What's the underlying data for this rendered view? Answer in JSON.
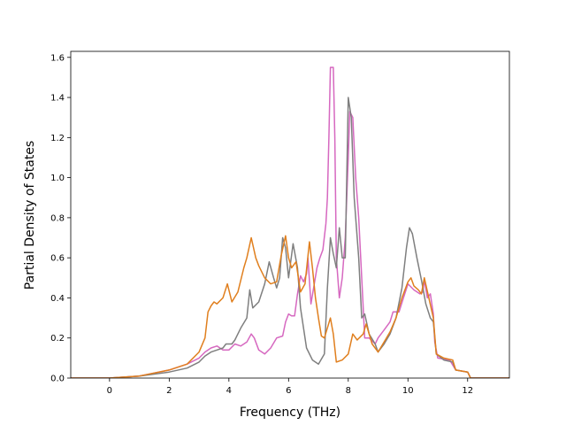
{
  "chart_data": {
    "type": "line",
    "title": "",
    "xlabel": "Frequency (THz)",
    "ylabel": "Partial Density of States",
    "xlim": [
      -1.3,
      13.4
    ],
    "ylim": [
      0,
      1.63
    ],
    "xticks": [
      0,
      2,
      4,
      6,
      8,
      10,
      12
    ],
    "yticks": [
      0.0,
      0.2,
      0.4,
      0.6,
      0.8,
      1.0,
      1.2,
      1.4,
      1.6
    ],
    "xtick_labels": [
      "0",
      "2",
      "4",
      "6",
      "8",
      "10",
      "12"
    ],
    "ytick_labels": [
      "0.0",
      "0.2",
      "0.4",
      "0.6",
      "0.8",
      "1.0",
      "1.2",
      "1.4",
      "1.6"
    ],
    "grid": false,
    "legend": "none",
    "series": [
      {
        "color": "#d668c0",
        "points": [
          [
            -1.3,
            0
          ],
          [
            0,
            0.0
          ],
          [
            1.0,
            0.01
          ],
          [
            2.0,
            0.04
          ],
          [
            2.6,
            0.07
          ],
          [
            3.0,
            0.1
          ],
          [
            3.2,
            0.13
          ],
          [
            3.4,
            0.15
          ],
          [
            3.6,
            0.16
          ],
          [
            3.8,
            0.14
          ],
          [
            4.0,
            0.14
          ],
          [
            4.2,
            0.17
          ],
          [
            4.4,
            0.16
          ],
          [
            4.6,
            0.18
          ],
          [
            4.75,
            0.22
          ],
          [
            4.85,
            0.2
          ],
          [
            5.0,
            0.14
          ],
          [
            5.2,
            0.12
          ],
          [
            5.4,
            0.15
          ],
          [
            5.6,
            0.2
          ],
          [
            5.8,
            0.21
          ],
          [
            5.9,
            0.28
          ],
          [
            6.0,
            0.32
          ],
          [
            6.1,
            0.31
          ],
          [
            6.2,
            0.31
          ],
          [
            6.3,
            0.42
          ],
          [
            6.4,
            0.51
          ],
          [
            6.5,
            0.48
          ],
          [
            6.6,
            0.52
          ],
          [
            6.65,
            0.6
          ],
          [
            6.75,
            0.37
          ],
          [
            6.85,
            0.46
          ],
          [
            6.95,
            0.55
          ],
          [
            7.05,
            0.6
          ],
          [
            7.15,
            0.64
          ],
          [
            7.25,
            0.77
          ],
          [
            7.3,
            0.9
          ],
          [
            7.35,
            1.2
          ],
          [
            7.4,
            1.55
          ],
          [
            7.5,
            1.55
          ],
          [
            7.55,
            1.2
          ],
          [
            7.6,
            0.6
          ],
          [
            7.7,
            0.4
          ],
          [
            7.8,
            0.5
          ],
          [
            7.9,
            0.7
          ],
          [
            8.0,
            1.1
          ],
          [
            8.05,
            1.33
          ],
          [
            8.15,
            1.3
          ],
          [
            8.25,
            1.0
          ],
          [
            8.35,
            0.8
          ],
          [
            8.45,
            0.5
          ],
          [
            8.55,
            0.2
          ],
          [
            8.7,
            0.2
          ],
          [
            8.9,
            0.17
          ],
          [
            9.0,
            0.2
          ],
          [
            9.2,
            0.24
          ],
          [
            9.4,
            0.28
          ],
          [
            9.5,
            0.33
          ],
          [
            9.7,
            0.33
          ],
          [
            9.85,
            0.4
          ],
          [
            10.0,
            0.47
          ],
          [
            10.2,
            0.44
          ],
          [
            10.4,
            0.42
          ],
          [
            10.5,
            0.43
          ],
          [
            10.55,
            0.49
          ],
          [
            10.65,
            0.4
          ],
          [
            10.75,
            0.42
          ],
          [
            10.85,
            0.32
          ],
          [
            10.9,
            0.18
          ],
          [
            11.0,
            0.1
          ],
          [
            11.4,
            0.09
          ],
          [
            11.6,
            0.04
          ],
          [
            12.0,
            0.03
          ],
          [
            12.1,
            0.0
          ],
          [
            13.4,
            0
          ]
        ]
      },
      {
        "color": "#7f7f7f",
        "points": [
          [
            -1.3,
            0
          ],
          [
            0,
            0.0
          ],
          [
            1.0,
            0.01
          ],
          [
            2.0,
            0.03
          ],
          [
            2.6,
            0.05
          ],
          [
            3.0,
            0.08
          ],
          [
            3.2,
            0.11
          ],
          [
            3.4,
            0.13
          ],
          [
            3.6,
            0.14
          ],
          [
            3.8,
            0.15
          ],
          [
            3.9,
            0.17
          ],
          [
            4.1,
            0.17
          ],
          [
            4.2,
            0.19
          ],
          [
            4.4,
            0.25
          ],
          [
            4.6,
            0.3
          ],
          [
            4.7,
            0.44
          ],
          [
            4.8,
            0.35
          ],
          [
            5.0,
            0.38
          ],
          [
            5.2,
            0.47
          ],
          [
            5.35,
            0.58
          ],
          [
            5.5,
            0.5
          ],
          [
            5.6,
            0.45
          ],
          [
            5.7,
            0.5
          ],
          [
            5.8,
            0.7
          ],
          [
            5.9,
            0.65
          ],
          [
            6.0,
            0.5
          ],
          [
            6.15,
            0.67
          ],
          [
            6.3,
            0.55
          ],
          [
            6.4,
            0.35
          ],
          [
            6.5,
            0.25
          ],
          [
            6.6,
            0.15
          ],
          [
            6.8,
            0.09
          ],
          [
            7.0,
            0.07
          ],
          [
            7.2,
            0.12
          ],
          [
            7.3,
            0.45
          ],
          [
            7.4,
            0.7
          ],
          [
            7.5,
            0.62
          ],
          [
            7.6,
            0.55
          ],
          [
            7.7,
            0.75
          ],
          [
            7.8,
            0.6
          ],
          [
            7.9,
            0.6
          ],
          [
            8.0,
            1.4
          ],
          [
            8.1,
            1.3
          ],
          [
            8.2,
            0.9
          ],
          [
            8.35,
            0.6
          ],
          [
            8.45,
            0.3
          ],
          [
            8.55,
            0.32
          ],
          [
            8.7,
            0.22
          ],
          [
            8.9,
            0.17
          ],
          [
            9.0,
            0.13
          ],
          [
            9.2,
            0.17
          ],
          [
            9.4,
            0.22
          ],
          [
            9.6,
            0.3
          ],
          [
            9.8,
            0.45
          ],
          [
            9.95,
            0.65
          ],
          [
            10.05,
            0.75
          ],
          [
            10.15,
            0.72
          ],
          [
            10.3,
            0.6
          ],
          [
            10.45,
            0.49
          ],
          [
            10.6,
            0.37
          ],
          [
            10.75,
            0.3
          ],
          [
            10.85,
            0.28
          ],
          [
            10.95,
            0.12
          ],
          [
            11.2,
            0.09
          ],
          [
            11.5,
            0.08
          ],
          [
            11.6,
            0.04
          ],
          [
            12.0,
            0.03
          ],
          [
            12.1,
            0.0
          ],
          [
            13.4,
            0
          ]
        ]
      },
      {
        "color": "#e07f1e",
        "points": [
          [
            -1.3,
            0
          ],
          [
            0,
            0.0
          ],
          [
            1.0,
            0.01
          ],
          [
            2.0,
            0.04
          ],
          [
            2.6,
            0.07
          ],
          [
            3.0,
            0.13
          ],
          [
            3.2,
            0.2
          ],
          [
            3.3,
            0.33
          ],
          [
            3.4,
            0.36
          ],
          [
            3.5,
            0.38
          ],
          [
            3.6,
            0.37
          ],
          [
            3.8,
            0.4
          ],
          [
            3.95,
            0.47
          ],
          [
            4.1,
            0.38
          ],
          [
            4.3,
            0.43
          ],
          [
            4.5,
            0.55
          ],
          [
            4.6,
            0.6
          ],
          [
            4.75,
            0.7
          ],
          [
            4.9,
            0.6
          ],
          [
            5.0,
            0.56
          ],
          [
            5.2,
            0.5
          ],
          [
            5.4,
            0.47
          ],
          [
            5.6,
            0.48
          ],
          [
            5.75,
            0.61
          ],
          [
            5.9,
            0.71
          ],
          [
            6.0,
            0.6
          ],
          [
            6.1,
            0.55
          ],
          [
            6.25,
            0.58
          ],
          [
            6.4,
            0.43
          ],
          [
            6.55,
            0.47
          ],
          [
            6.7,
            0.68
          ],
          [
            6.8,
            0.55
          ],
          [
            6.9,
            0.4
          ],
          [
            7.0,
            0.3
          ],
          [
            7.1,
            0.21
          ],
          [
            7.2,
            0.2
          ],
          [
            7.4,
            0.3
          ],
          [
            7.5,
            0.22
          ],
          [
            7.6,
            0.08
          ],
          [
            7.8,
            0.09
          ],
          [
            8.0,
            0.12
          ],
          [
            8.15,
            0.22
          ],
          [
            8.3,
            0.19
          ],
          [
            8.5,
            0.22
          ],
          [
            8.6,
            0.27
          ],
          [
            8.8,
            0.17
          ],
          [
            9.0,
            0.13
          ],
          [
            9.2,
            0.18
          ],
          [
            9.4,
            0.23
          ],
          [
            9.6,
            0.3
          ],
          [
            9.8,
            0.4
          ],
          [
            10.0,
            0.48
          ],
          [
            10.1,
            0.5
          ],
          [
            10.2,
            0.46
          ],
          [
            10.35,
            0.44
          ],
          [
            10.45,
            0.42
          ],
          [
            10.55,
            0.5
          ],
          [
            10.7,
            0.4
          ],
          [
            10.85,
            0.3
          ],
          [
            10.95,
            0.12
          ],
          [
            11.2,
            0.1
          ],
          [
            11.5,
            0.09
          ],
          [
            11.6,
            0.04
          ],
          [
            12.0,
            0.03
          ],
          [
            12.1,
            0.0
          ],
          [
            13.4,
            0
          ]
        ]
      }
    ]
  }
}
